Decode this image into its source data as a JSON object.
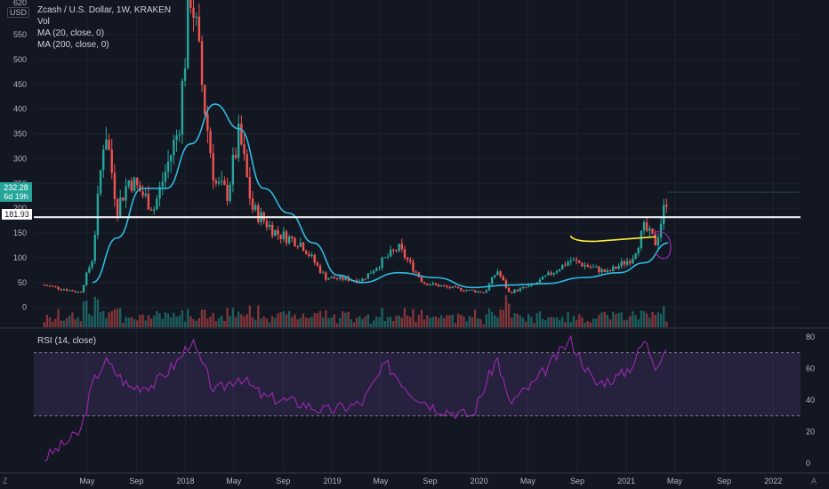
{
  "header": {
    "symbol_title": "Zcash / U.S. Dollar, 1W, KRAKEN",
    "indicators": [
      "Vol",
      "MA (20, close, 0)",
      "MA (200, close, 0)"
    ],
    "currency": "USD",
    "rsi_title": "RSI (14, close)",
    "tz_left": "Z",
    "tz_right": "A"
  },
  "colors": {
    "bg": "#131722",
    "up": "#26a69a",
    "down": "#ef5350",
    "ma": "#2ebbdf",
    "rsi": "#9c27b0",
    "hline": "#ffffff",
    "drawn": "#ffeb3b",
    "circle": "#9c27b0"
  },
  "price_badge": {
    "price": "232.28",
    "countdown": "6d 19h"
  },
  "level_badge": {
    "value": "181.93"
  },
  "chart_data": [
    {
      "type": "candlestick",
      "title": "Zcash / U.S. Dollar, 1W, KRAKEN",
      "ylim": [
        -40,
        620
      ],
      "y_ticks": [
        0,
        50,
        100,
        150,
        200,
        250,
        300,
        350,
        400,
        450,
        500,
        550
      ],
      "y_top_label": "620",
      "x_ticks": [
        "May",
        "Sep",
        "2018",
        "May",
        "Sep",
        "2019",
        "May",
        "Sep",
        "2020",
        "May",
        "Sep",
        "2021",
        "May",
        "Sep",
        "2022"
      ],
      "key_points": [
        {
          "date": "2017-01",
          "close": 45
        },
        {
          "date": "2017-04",
          "close": 30
        },
        {
          "date": "2017-05",
          "close": 100
        },
        {
          "date": "2017-06",
          "close": 370
        },
        {
          "date": "2017-07",
          "close": 200
        },
        {
          "date": "2017-08",
          "close": 260
        },
        {
          "date": "2017-10",
          "close": 200
        },
        {
          "date": "2017-12",
          "close": 360
        },
        {
          "date": "2018-01",
          "close": 650
        },
        {
          "date": "2018-02",
          "close": 420
        },
        {
          "date": "2018-03",
          "close": 250
        },
        {
          "date": "2018-04",
          "close": 230
        },
        {
          "date": "2018-05",
          "close": 350
        },
        {
          "date": "2018-06",
          "close": 200
        },
        {
          "date": "2018-08",
          "close": 150
        },
        {
          "date": "2018-10",
          "close": 130
        },
        {
          "date": "2018-12",
          "close": 60
        },
        {
          "date": "2019-03",
          "close": 55
        },
        {
          "date": "2019-05",
          "close": 100
        },
        {
          "date": "2019-06",
          "close": 120
        },
        {
          "date": "2019-08",
          "close": 50
        },
        {
          "date": "2019-10",
          "close": 40
        },
        {
          "date": "2020-01",
          "close": 30
        },
        {
          "date": "2020-02",
          "close": 75
        },
        {
          "date": "2020-03",
          "close": 30
        },
        {
          "date": "2020-05",
          "close": 45
        },
        {
          "date": "2020-08",
          "close": 95
        },
        {
          "date": "2020-11",
          "close": 70
        },
        {
          "date": "2021-01",
          "close": 100
        },
        {
          "date": "2021-02",
          "close": 160
        },
        {
          "date": "2021-03",
          "close": 130
        },
        {
          "date": "2021-04",
          "close": 232.28
        }
      ],
      "series": [
        {
          "name": "MA (20, close, 0)",
          "values": [
            {
              "date": "2017-05",
              "value": 50
            },
            {
              "date": "2017-07",
              "value": 140
            },
            {
              "date": "2017-09",
              "value": 240
            },
            {
              "date": "2017-11",
              "value": 240
            },
            {
              "date": "2018-01",
              "value": 330
            },
            {
              "date": "2018-03",
              "value": 410
            },
            {
              "date": "2018-05",
              "value": 360
            },
            {
              "date": "2018-07",
              "value": 240
            },
            {
              "date": "2018-09",
              "value": 190
            },
            {
              "date": "2018-11",
              "value": 130
            },
            {
              "date": "2019-01",
              "value": 65
            },
            {
              "date": "2019-03",
              "value": 50
            },
            {
              "date": "2019-06",
              "value": 70
            },
            {
              "date": "2019-09",
              "value": 60
            },
            {
              "date": "2019-12",
              "value": 40
            },
            {
              "date": "2020-03",
              "value": 45
            },
            {
              "date": "2020-06",
              "value": 48
            },
            {
              "date": "2020-09",
              "value": 60
            },
            {
              "date": "2020-12",
              "value": 70
            },
            {
              "date": "2021-02",
              "value": 90
            },
            {
              "date": "2021-04",
              "value": 130
            }
          ]
        }
      ],
      "horizontal_line": 181.93,
      "drawn_line_level": 137
    },
    {
      "type": "line",
      "title": "RSI (14, close)",
      "ylim": [
        -5,
        85
      ],
      "y_ticks": [
        0,
        20,
        40,
        60,
        80
      ],
      "bands": [
        30,
        70
      ],
      "series": [
        {
          "name": "RSI (14, close)",
          "values": [
            {
              "date": "2017-01",
              "value": 3
            },
            {
              "date": "2017-04",
              "value": 20
            },
            {
              "date": "2017-05",
              "value": 50
            },
            {
              "date": "2017-06",
              "value": 65
            },
            {
              "date": "2017-08",
              "value": 48
            },
            {
              "date": "2017-10",
              "value": 50
            },
            {
              "date": "2017-12",
              "value": 65
            },
            {
              "date": "2018-01",
              "value": 78
            },
            {
              "date": "2018-03",
              "value": 45
            },
            {
              "date": "2018-05",
              "value": 55
            },
            {
              "date": "2018-07",
              "value": 42
            },
            {
              "date": "2018-10",
              "value": 38
            },
            {
              "date": "2018-12",
              "value": 33
            },
            {
              "date": "2019-03",
              "value": 38
            },
            {
              "date": "2019-05",
              "value": 63
            },
            {
              "date": "2019-07",
              "value": 45
            },
            {
              "date": "2019-09",
              "value": 35
            },
            {
              "date": "2019-12",
              "value": 30
            },
            {
              "date": "2020-02",
              "value": 67
            },
            {
              "date": "2020-03",
              "value": 38
            },
            {
              "date": "2020-05",
              "value": 50
            },
            {
              "date": "2020-08",
              "value": 78
            },
            {
              "date": "2020-10",
              "value": 50
            },
            {
              "date": "2020-12",
              "value": 55
            },
            {
              "date": "2021-01",
              "value": 62
            },
            {
              "date": "2021-02",
              "value": 78
            },
            {
              "date": "2021-03",
              "value": 62
            },
            {
              "date": "2021-04",
              "value": 76
            }
          ]
        }
      ]
    }
  ]
}
